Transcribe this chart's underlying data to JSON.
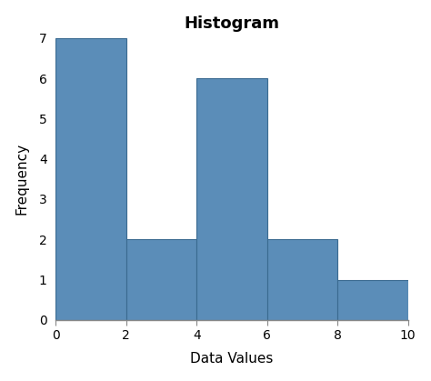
{
  "title": "Histogram",
  "xlabel": "Data Values",
  "ylabel": "Frequency",
  "bar_edges": [
    0,
    2,
    4,
    6,
    8,
    10
  ],
  "bar_heights": [
    7,
    2,
    6,
    2,
    1
  ],
  "bar_color": "#5b8db8",
  "bar_edge_color": "#3a6a90",
  "xlim": [
    0,
    10
  ],
  "ylim": [
    0,
    7
  ],
  "xticks": [
    0,
    2,
    4,
    6,
    8,
    10
  ],
  "yticks": [
    0,
    1,
    2,
    3,
    4,
    5,
    6,
    7
  ],
  "background_color": "#ffffff",
  "title_fontsize": 13,
  "axis_label_fontsize": 11,
  "tick_fontsize": 10,
  "figsize": [
    4.74,
    4.19
  ],
  "dpi": 100
}
